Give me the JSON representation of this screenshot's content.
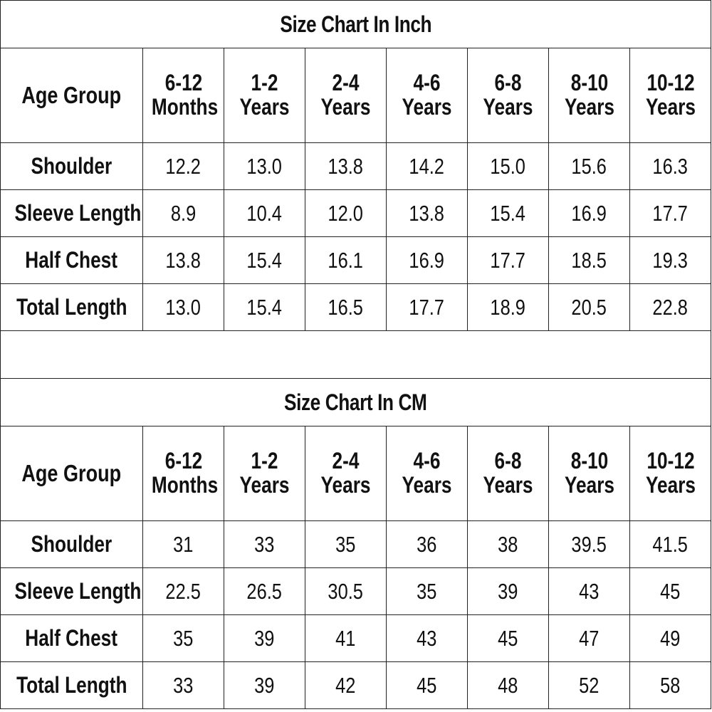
{
  "inch_table": {
    "title": "Size Chart In Inch",
    "header": {
      "label": "Age Group",
      "columns": [
        "6-12 Months",
        "1-2 Years",
        "2-4 Years",
        "4-6 Years",
        "6-8 Years",
        "8-10 Years",
        "10-12 Years"
      ]
    },
    "rows": [
      {
        "label": "Shoulder",
        "values": [
          "12.2",
          "13.0",
          "13.8",
          "14.2",
          "15.0",
          "15.6",
          "16.3"
        ]
      },
      {
        "label": "Sleeve Length",
        "values": [
          "8.9",
          "10.4",
          "12.0",
          "13.8",
          "15.4",
          "16.9",
          "17.7"
        ]
      },
      {
        "label": "Half Chest",
        "values": [
          "13.8",
          "15.4",
          "16.1",
          "16.9",
          "17.7",
          "18.5",
          "19.3"
        ]
      },
      {
        "label": "Total Length",
        "values": [
          "13.0",
          "15.4",
          "16.5",
          "17.7",
          "18.9",
          "20.5",
          "22.8"
        ]
      }
    ]
  },
  "cm_table": {
    "title": "Size Chart In CM",
    "header": {
      "label": "Age Group",
      "columns": [
        "6-12 Months",
        "1-2 Years",
        "2-4 Years",
        "4-6 Years",
        "6-8 Years",
        "8-10 Years",
        "10-12 Years"
      ]
    },
    "rows": [
      {
        "label": "Shoulder",
        "values": [
          "31",
          "33",
          "35",
          "36",
          "38",
          "39.5",
          "41.5"
        ]
      },
      {
        "label": "Sleeve Length",
        "values": [
          "22.5",
          "26.5",
          "30.5",
          "35",
          "39",
          "43",
          "45"
        ]
      },
      {
        "label": "Half Chest",
        "values": [
          "35",
          "39",
          "41",
          "43",
          "45",
          "47",
          "49"
        ]
      },
      {
        "label": "Total Length",
        "values": [
          "33",
          "39",
          "42",
          "45",
          "48",
          "52",
          "58"
        ]
      }
    ]
  }
}
